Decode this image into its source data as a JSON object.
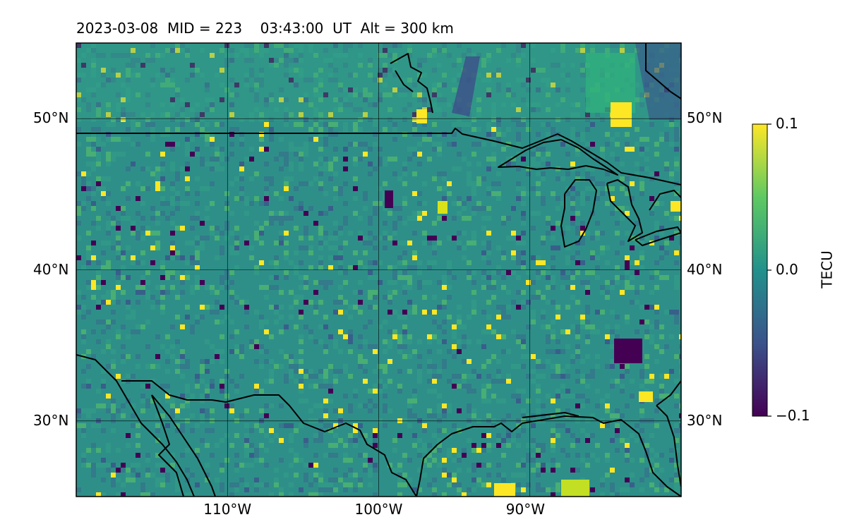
{
  "title": "2023-03-08  MID = 223    03:43:00  UT  Alt = 300 km",
  "map": {
    "lon_range": [
      -120,
      -80
    ],
    "lat_range": [
      25,
      55
    ],
    "lon_ticks": [
      {
        "value": -110,
        "label": "110°W"
      },
      {
        "value": -100,
        "label": "100°W"
      },
      {
        "value": -90,
        "label": "90°W"
      }
    ],
    "lat_ticks": [
      {
        "value": 50,
        "label": "50°N"
      },
      {
        "value": 40,
        "label": "40°N"
      },
      {
        "value": 30,
        "label": "30°N"
      }
    ],
    "gridlines": true,
    "colormap": "viridis",
    "border_color": "#000000"
  },
  "colorbar": {
    "label": "TECU",
    "min": -0.1,
    "max": 0.1,
    "ticks": [
      {
        "value": 0.1,
        "label": "0.1"
      },
      {
        "value": 0.0,
        "label": "0.0"
      },
      {
        "value": -0.1,
        "label": "−0.1"
      }
    ],
    "colors": [
      "#440154",
      "#3b528b",
      "#21918c",
      "#5ec962",
      "#fde725"
    ]
  }
}
